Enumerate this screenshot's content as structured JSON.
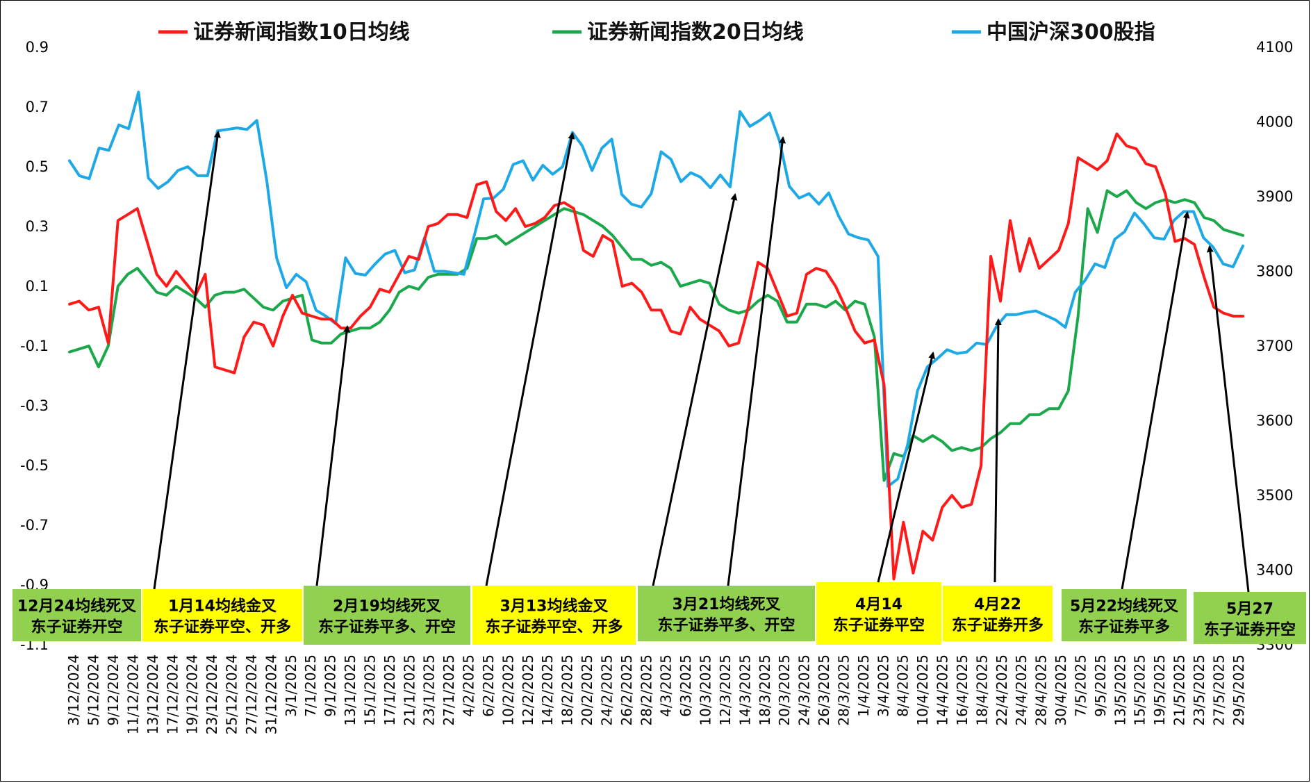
{
  "chart_data": {
    "type": "line",
    "legend_position": "top",
    "grid": false,
    "colors": {
      "ma10": "#ff1a1a",
      "ma20": "#1aa84a",
      "csi300": "#1ea9e6",
      "box_green": "#92d050",
      "box_yellow": "#ffff00",
      "arrow": "#000000"
    },
    "y_left": {
      "ylim": [
        -1.1,
        0.9
      ],
      "ticks": [
        "0.9",
        "0.7",
        "0.5",
        "0.3",
        "0.1",
        "-0.1",
        "-0.3",
        "-0.5",
        "-0.7",
        "-0.9",
        "-1.1"
      ],
      "tick_values": [
        0.9,
        0.7,
        0.5,
        0.3,
        0.1,
        -0.1,
        -0.3,
        -0.5,
        -0.7,
        -0.9,
        -1.1
      ]
    },
    "y_right": {
      "ylim": [
        3300,
        4100
      ],
      "ticks": [
        "4100",
        "4000",
        "3900",
        "3800",
        "3700",
        "3600",
        "3500",
        "3400",
        "3300"
      ],
      "tick_values": [
        4100,
        4000,
        3900,
        3800,
        3700,
        3600,
        3500,
        3400,
        3300
      ]
    },
    "x_tick_labels": [
      "3/12/2024",
      "5/12/2024",
      "9/12/2024",
      "11/12/2024",
      "13/12/2024",
      "17/12/2024",
      "19/12/2024",
      "23/12/2024",
      "25/12/2024",
      "27/12/2024",
      "31/12/2024",
      "3/1/2025",
      "7/1/2025",
      "9/1/2025",
      "13/1/2025",
      "15/1/2025",
      "17/1/2025",
      "21/1/2025",
      "23/1/2025",
      "27/1/2025",
      "4/2/2025",
      "6/2/2025",
      "10/2/2025",
      "12/2/2025",
      "14/2/2025",
      "18/2/2025",
      "20/2/2025",
      "24/2/2025",
      "26/2/2025",
      "28/2/2025",
      "4/3/2025",
      "6/3/2025",
      "10/3/2025",
      "12/3/2025",
      "14/3/2025",
      "18/3/2025",
      "20/3/2025",
      "24/3/2025",
      "26/3/2025",
      "28/3/2025",
      "1/4/2025",
      "3/4/2025",
      "8/4/2025",
      "10/4/2025",
      "14/4/2025",
      "16/4/2025",
      "18/4/2025",
      "22/4/2025",
      "24/4/2025",
      "28/4/2025",
      "30/4/2025",
      "7/5/2025",
      "9/5/2025",
      "13/5/2025",
      "15/5/2025",
      "19/5/2025",
      "21/5/2025",
      "23/5/2025",
      "27/5/2025",
      "29/5/2025"
    ],
    "series": [
      {
        "name": "证券新闻指数10日均线",
        "axis": "left",
        "values": [
          0.04,
          0.05,
          0.02,
          0.03,
          -0.09,
          0.32,
          0.34,
          0.36,
          0.25,
          0.14,
          0.1,
          0.15,
          0.11,
          0.07,
          0.14,
          -0.17,
          -0.18,
          -0.19,
          -0.07,
          -0.02,
          -0.03,
          -0.1,
          0.0,
          0.07,
          0.01,
          0.0,
          -0.01,
          -0.01,
          -0.04,
          -0.04,
          0.0,
          0.03,
          0.09,
          0.08,
          0.14,
          0.2,
          0.19,
          0.3,
          0.31,
          0.34,
          0.34,
          0.33,
          0.44,
          0.45,
          0.35,
          0.32,
          0.36,
          0.3,
          0.31,
          0.33,
          0.37,
          0.38,
          0.36,
          0.22,
          0.2,
          0.27,
          0.25,
          0.1,
          0.11,
          0.08,
          0.02,
          0.02,
          -0.05,
          -0.06,
          0.03,
          -0.01,
          -0.03,
          -0.05,
          -0.1,
          -0.09,
          0.03,
          0.18,
          0.16,
          0.08,
          0.0,
          0.01,
          0.14,
          0.16,
          0.15,
          0.1,
          0.03,
          -0.05,
          -0.09,
          -0.08,
          -0.23,
          -0.88,
          -0.69,
          -0.86,
          -0.72,
          -0.75,
          -0.64,
          -0.6,
          -0.64,
          -0.63,
          -0.5,
          0.2,
          0.05,
          0.32,
          0.15,
          0.26,
          0.16,
          0.19,
          0.22,
          0.31,
          0.53,
          0.51,
          0.49,
          0.52,
          0.61,
          0.57,
          0.56,
          0.51,
          0.5,
          0.41,
          0.25,
          0.26,
          0.24,
          0.13,
          0.03,
          0.01,
          0.0,
          0.0
        ]
      },
      {
        "name": "证券新闻指数20日均线",
        "axis": "left",
        "values": [
          -0.12,
          -0.11,
          -0.1,
          -0.17,
          -0.1,
          0.1,
          0.14,
          0.16,
          0.12,
          0.08,
          0.07,
          0.1,
          0.08,
          0.06,
          0.03,
          0.07,
          0.08,
          0.08,
          0.09,
          0.06,
          0.03,
          0.02,
          0.05,
          0.06,
          0.07,
          -0.08,
          -0.09,
          -0.09,
          -0.06,
          -0.05,
          -0.04,
          -0.04,
          -0.02,
          0.02,
          0.08,
          0.1,
          0.09,
          0.13,
          0.14,
          0.14,
          0.14,
          0.16,
          0.26,
          0.26,
          0.27,
          0.24,
          0.26,
          0.28,
          0.3,
          0.32,
          0.34,
          0.36,
          0.35,
          0.34,
          0.32,
          0.3,
          0.27,
          0.23,
          0.19,
          0.19,
          0.17,
          0.18,
          0.16,
          0.1,
          0.11,
          0.12,
          0.11,
          0.04,
          0.02,
          0.01,
          0.02,
          0.05,
          0.07,
          0.05,
          -0.02,
          -0.02,
          0.04,
          0.04,
          0.03,
          0.05,
          0.02,
          0.05,
          0.04,
          -0.07,
          -0.55,
          -0.46,
          -0.47,
          -0.4,
          -0.42,
          -0.4,
          -0.42,
          -0.45,
          -0.44,
          -0.45,
          -0.44,
          -0.41,
          -0.39,
          -0.36,
          -0.36,
          -0.33,
          -0.33,
          -0.31,
          -0.31,
          -0.25,
          0.0,
          0.36,
          0.28,
          0.42,
          0.4,
          0.42,
          0.38,
          0.36,
          0.38,
          0.39,
          0.38,
          0.39,
          0.38,
          0.33,
          0.32,
          0.29,
          0.28,
          0.27
        ]
      },
      {
        "name": "中国沪深300股指",
        "axis": "right",
        "values": [
          3948,
          3928,
          3924,
          3965,
          3962,
          3996,
          3991,
          4040,
          3925,
          3911,
          3920,
          3935,
          3940,
          3928,
          3928,
          3988,
          3990,
          3992,
          3990,
          4002,
          3922,
          3818,
          3778,
          3796,
          3786,
          3748,
          3740,
          3730,
          3818,
          3797,
          3795,
          3810,
          3823,
          3828,
          3798,
          3802,
          3845,
          3800,
          3800,
          3798,
          3796,
          3845,
          3897,
          3898,
          3910,
          3943,
          3948,
          3922,
          3942,
          3930,
          3940,
          3986,
          3968,
          3935,
          3965,
          3977,
          3903,
          3890,
          3886,
          3904,
          3960,
          3950,
          3920,
          3932,
          3926,
          3912,
          3929,
          3913,
          4014,
          3994,
          4002,
          4012,
          3975,
          3914,
          3898,
          3904,
          3890,
          3905,
          3874,
          3850,
          3845,
          3842,
          3820,
          3512,
          3522,
          3568,
          3640,
          3672,
          3683,
          3695,
          3690,
          3692,
          3704,
          3702,
          3726,
          3742,
          3742,
          3745,
          3747,
          3741,
          3735,
          3725,
          3772,
          3788,
          3810,
          3805,
          3843,
          3853,
          3878,
          3863,
          3845,
          3843,
          3868,
          3880,
          3880,
          3845,
          3832,
          3810,
          3806,
          3834
        ]
      }
    ],
    "annotations": [
      {
        "line1": "12月24均线死叉",
        "line2": "东子证券开空",
        "color": "green"
      },
      {
        "line1": "1月14均线金叉",
        "line2": "东子证券平空、开多",
        "color": "yellow"
      },
      {
        "line1": "2月19均线死叉",
        "line2": "东子证券平多、开空",
        "color": "green"
      },
      {
        "line1": "3月13均线金叉",
        "line2": "东子证券平空、开多",
        "color": "yellow"
      },
      {
        "line1": "3月21均线死叉",
        "line2": "东子证券平多、开空",
        "color": "green"
      },
      {
        "line1": "4月14",
        "line2": "东子证券平空",
        "color": "yellow"
      },
      {
        "line1": "4月22",
        "line2": "东子证券开多",
        "color": "yellow"
      },
      {
        "line1": "5月22均线死叉",
        "line2": "东子证券平多",
        "color": "green"
      },
      {
        "line1": "5月27",
        "line2": "东子证券开空",
        "color": "green"
      }
    ]
  }
}
